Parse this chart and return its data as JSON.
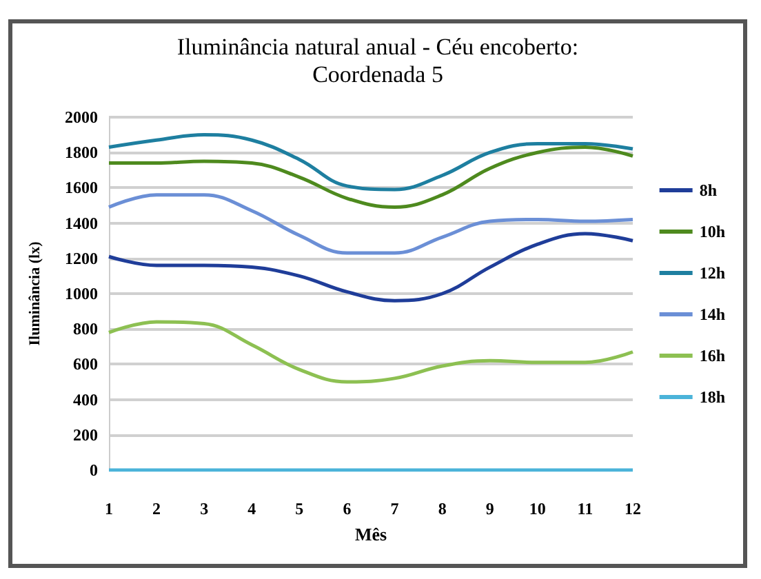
{
  "chart_data": {
    "type": "line",
    "title": "Iluminância natural anual - Céu encoberto:\nCoordenada 5",
    "xlabel": "Mês",
    "ylabel": "Iluminância (lx)",
    "x": [
      1,
      2,
      3,
      4,
      5,
      6,
      7,
      8,
      9,
      10,
      11,
      12
    ],
    "xlim": [
      1,
      12
    ],
    "xticks": [
      1,
      2,
      3,
      4,
      5,
      6,
      7,
      8,
      9,
      10,
      11,
      12
    ],
    "series": [
      {
        "name": "8h",
        "color": "#1f3d99",
        "values": [
          1210,
          1160,
          1160,
          1150,
          1100,
          1010,
          960,
          1000,
          1150,
          1280,
          1340,
          1300
        ]
      },
      {
        "name": "10h",
        "color": "#4e8a1e",
        "values": [
          1740,
          1740,
          1750,
          1740,
          1660,
          1540,
          1490,
          1560,
          1710,
          1800,
          1830,
          1780
        ]
      },
      {
        "name": "12h",
        "color": "#1e7fa0",
        "values": [
          1830,
          1870,
          1900,
          1870,
          1760,
          1610,
          1590,
          1670,
          1800,
          1850,
          1850,
          1820
        ]
      },
      {
        "name": "14h",
        "color": "#6b8fd6",
        "values": [
          1490,
          1560,
          1560,
          1470,
          1330,
          1230,
          1230,
          1320,
          1410,
          1420,
          1410,
          1420
        ]
      },
      {
        "name": "16h",
        "color": "#8dc052",
        "values": [
          780,
          840,
          830,
          710,
          570,
          500,
          520,
          590,
          620,
          610,
          610,
          670
        ]
      },
      {
        "name": "18h",
        "color": "#4bb3d9",
        "values": [
          0,
          0,
          0,
          0,
          0,
          0,
          0,
          0,
          0,
          0,
          0,
          0
        ]
      }
    ],
    "ylim": [
      0,
      2000
    ],
    "yticks": [
      0,
      200,
      400,
      600,
      800,
      1000,
      1200,
      1400,
      1600,
      1800,
      2000
    ],
    "grid": "y",
    "legend": "right",
    "marker": "none",
    "line_style": "solid"
  }
}
